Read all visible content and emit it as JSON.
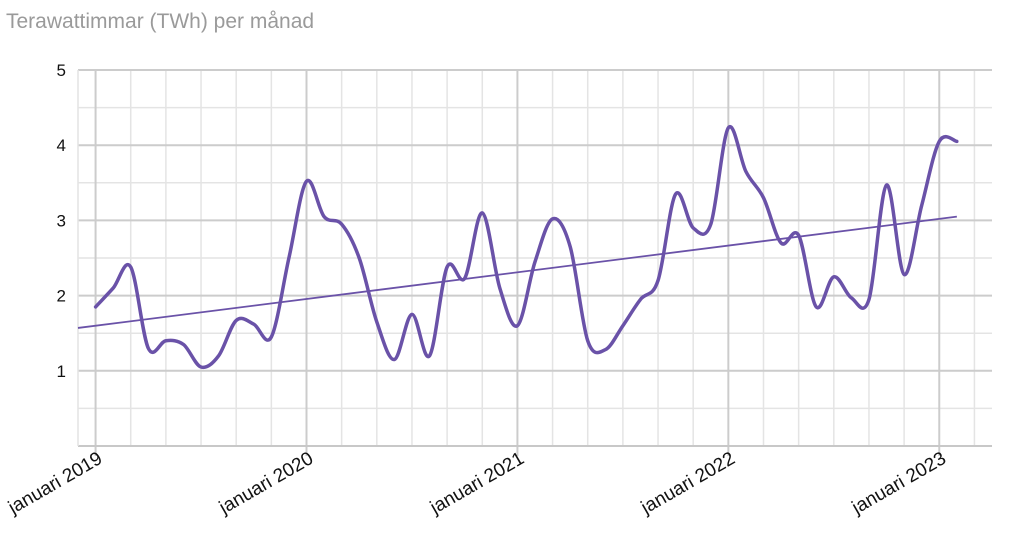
{
  "chart_data": {
    "type": "line",
    "title": "Terawattimmar (TWh) per månad",
    "xlabel": "",
    "ylabel": "",
    "ylim": [
      0,
      5
    ],
    "xlim": [
      "2018-12",
      "2023-04"
    ],
    "y_ticks": [
      "1",
      "2",
      "3",
      "4",
      "5"
    ],
    "x_tick_labels": [
      {
        "date": "2019-01",
        "label": "januari 2019"
      },
      {
        "date": "2020-01",
        "label": "januari 2020"
      },
      {
        "date": "2021-01",
        "label": "januari 2021"
      },
      {
        "date": "2022-01",
        "label": "januari 2022"
      },
      {
        "date": "2023-01",
        "label": "januari 2023"
      }
    ],
    "grid": true,
    "colors": {
      "series": "#6a52a8",
      "trend": "#6a52a8",
      "grid_minor": "#e4e4e4",
      "grid_major": "#cccccc",
      "title": "#9a9a9a"
    },
    "series": [
      {
        "x": [
          "2019-01",
          "2019-02",
          "2019-03",
          "2019-04",
          "2019-05",
          "2019-06",
          "2019-07",
          "2019-08",
          "2019-09",
          "2019-10",
          "2019-11",
          "2019-12",
          "2020-01",
          "2020-02",
          "2020-03",
          "2020-04",
          "2020-05",
          "2020-06",
          "2020-07",
          "2020-08",
          "2020-09",
          "2020-10",
          "2020-11",
          "2020-12",
          "2021-01",
          "2021-02",
          "2021-03",
          "2021-04",
          "2021-05",
          "2021-06",
          "2021-07",
          "2021-08",
          "2021-09",
          "2021-10",
          "2021-11",
          "2021-12",
          "2022-01",
          "2022-02",
          "2022-03",
          "2022-04",
          "2022-05",
          "2022-06",
          "2022-07",
          "2022-08",
          "2022-09",
          "2022-10",
          "2022-11",
          "2022-12",
          "2023-01",
          "2023-02"
        ],
        "values": [
          1.85,
          2.1,
          2.38,
          1.3,
          1.4,
          1.35,
          1.05,
          1.2,
          1.67,
          1.62,
          1.45,
          2.5,
          3.52,
          3.05,
          2.95,
          2.5,
          1.65,
          1.15,
          1.75,
          1.2,
          2.38,
          2.23,
          3.1,
          2.1,
          1.6,
          2.45,
          3.02,
          2.65,
          1.4,
          1.28,
          1.6,
          1.95,
          2.2,
          3.35,
          2.9,
          2.95,
          4.23,
          3.65,
          3.3,
          2.7,
          2.8,
          1.85,
          2.25,
          1.97,
          1.95,
          3.47,
          2.28,
          3.2,
          4.05,
          4.05
        ]
      },
      {
        "trendline": true,
        "x": [
          "2018-12",
          "2023-02"
        ],
        "values": [
          1.57,
          3.05
        ]
      }
    ]
  }
}
